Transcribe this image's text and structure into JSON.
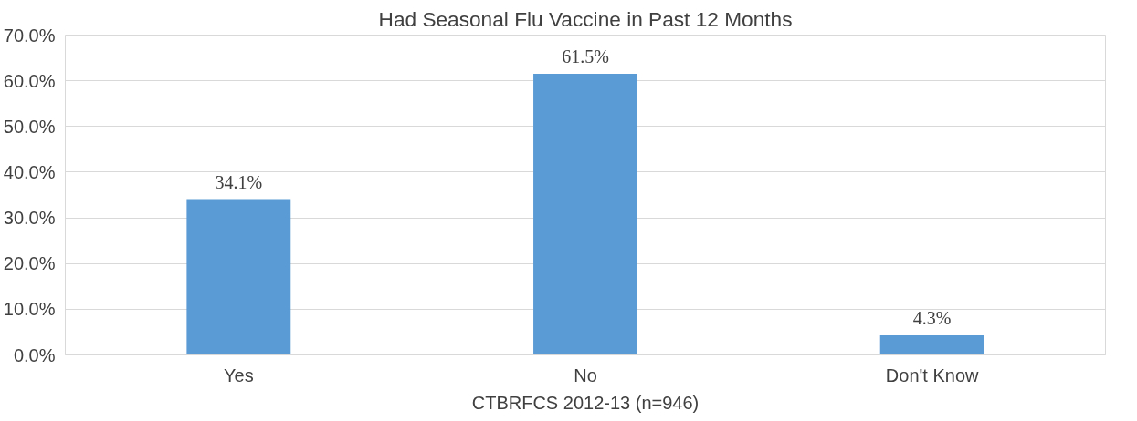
{
  "chart_data": {
    "type": "bar",
    "title": "Had Seasonal Flu Vaccine in Past 12 Months",
    "xlabel": "CTBRFCS 2012-13 (n=946)",
    "categories": [
      "Yes",
      "No",
      "Don't Know"
    ],
    "values": [
      34.1,
      61.5,
      4.3
    ],
    "colors": [
      "#5b9bd5",
      "#5b9bd5",
      "#5b9bd5"
    ],
    "value_labels": [
      "34.1%",
      "61.5%",
      "4.3%"
    ],
    "ylim": [
      0,
      70
    ],
    "yticks": [
      {
        "value": 0,
        "label": "0.0%"
      },
      {
        "value": 10,
        "label": "10.0%"
      },
      {
        "value": 20,
        "label": "20.0%"
      },
      {
        "value": 30,
        "label": "30.0%"
      },
      {
        "value": 40,
        "label": "40.0%"
      },
      {
        "value": 50,
        "label": "50.0%"
      },
      {
        "value": 60,
        "label": "60.0%"
      },
      {
        "value": 70,
        "label": "70.0%"
      }
    ],
    "grid": "y"
  }
}
